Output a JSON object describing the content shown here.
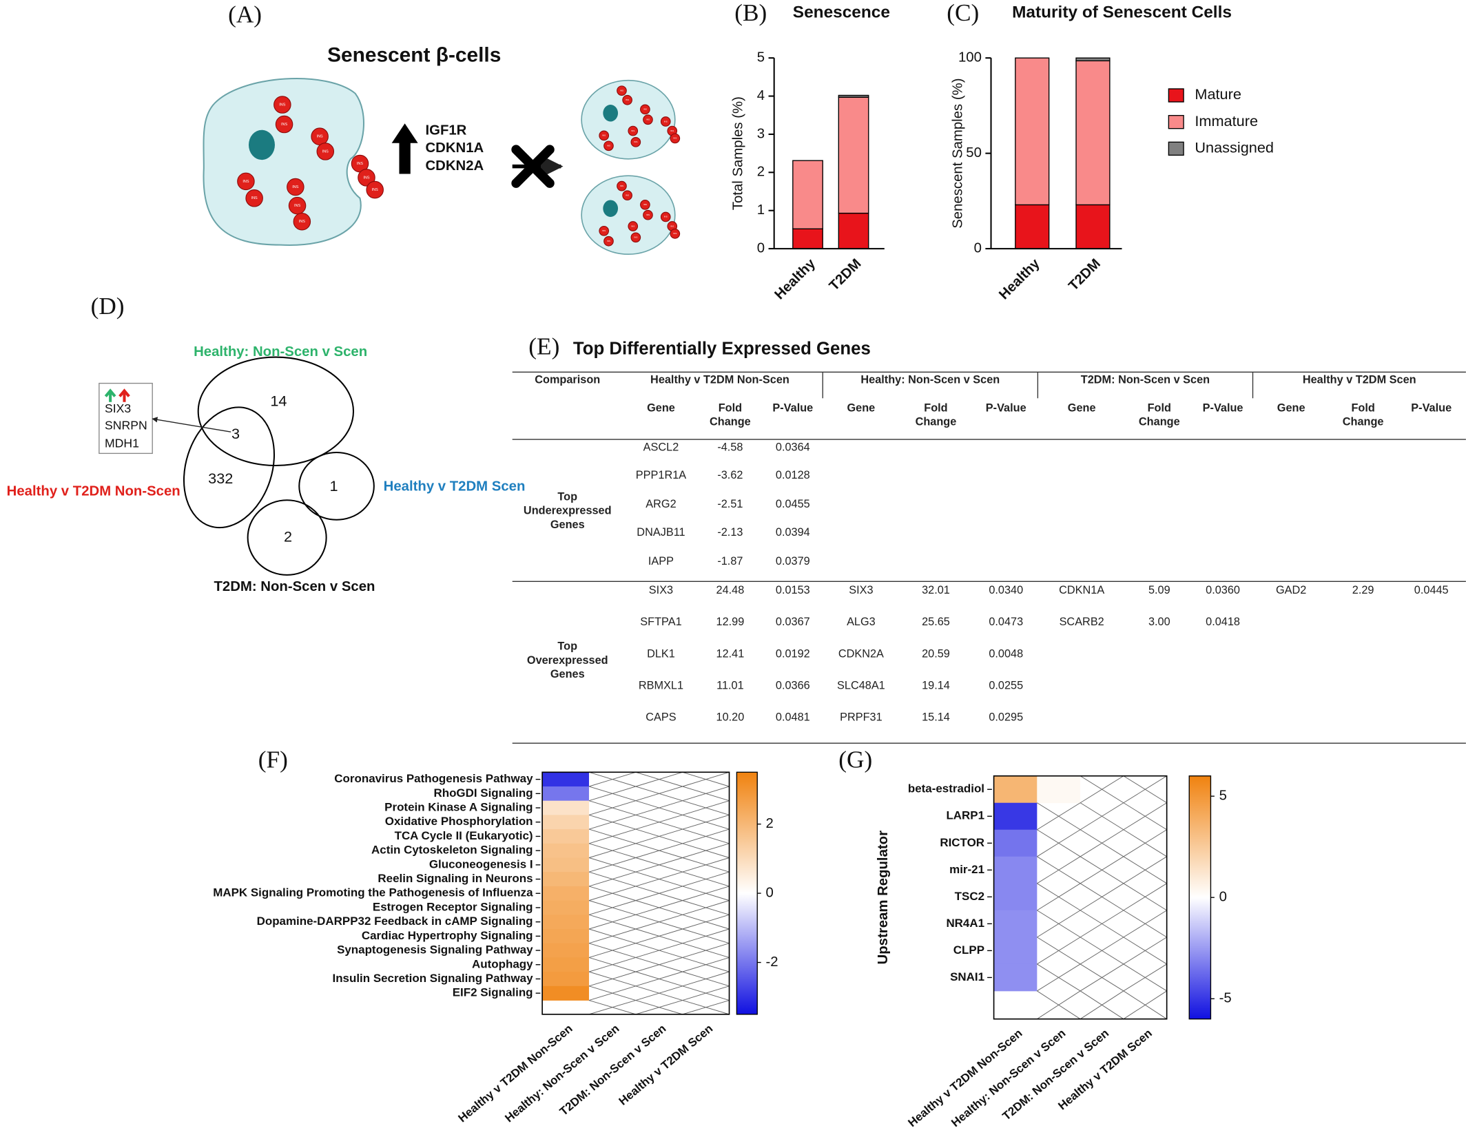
{
  "panel_labels": [
    "(A)",
    "(B)",
    "(C)",
    "(D)",
    "(E)",
    "(F)",
    "(G)"
  ],
  "diagram": {
    "title": "Senescent β-cells",
    "genes": [
      "IGF1R",
      "CDKN1A",
      "CDKN2A"
    ],
    "cell_label": "INS"
  },
  "venn": {
    "sets": [
      {
        "name": "Healthy: Non-Scen v Scen",
        "color": "#2db36b"
      },
      {
        "name": "Healthy v T2DM Non-Scen",
        "color": "#e0201b"
      },
      {
        "name": "Healthy v T2DM Scen",
        "color": "#1f7fbf"
      },
      {
        "name": "T2DM: Non-Scen v Scen",
        "color": "#111111"
      }
    ],
    "counts": [
      14,
      3,
      332,
      1,
      2
    ],
    "shared_genes": [
      "SIX3",
      "SNRPN",
      "MDH1"
    ]
  },
  "table": {
    "title": "Top Differentially Expressed Genes",
    "corner": "Comparison",
    "comparisons": [
      "Healthy v T2DM Non-Scen",
      "Healthy: Non-Scen v Scen",
      "T2DM: Non-Scen v Scen",
      "Healthy v T2DM Scen"
    ],
    "columns": [
      "Gene",
      "Fold Change",
      "P-Value"
    ],
    "sections": [
      {
        "label": "Top Underexpressed Genes",
        "comparisons": [
          [
            [
              "ASCL2",
              "-4.58",
              "0.0364"
            ],
            [
              "PPP1R1A",
              "-3.62",
              "0.0128"
            ],
            [
              "ARG2",
              "-2.51",
              "0.0455"
            ],
            [
              "DNAJB11",
              "-2.13",
              "0.0394"
            ],
            [
              "IAPP",
              "-1.87",
              "0.0379"
            ]
          ],
          [],
          [],
          []
        ]
      },
      {
        "label": "Top Overexpressed Genes",
        "comparisons": [
          [
            [
              "SIX3",
              "24.48",
              "0.0153"
            ],
            [
              "SFTPA1",
              "12.99",
              "0.0367"
            ],
            [
              "DLK1",
              "12.41",
              "0.0192"
            ],
            [
              "RBMXL1",
              "11.01",
              "0.0366"
            ],
            [
              "CAPS",
              "10.20",
              "0.0481"
            ]
          ],
          [
            [
              "SIX3",
              "32.01",
              "0.0340"
            ],
            [
              "ALG3",
              "25.65",
              "0.0473"
            ],
            [
              "CDKN2A",
              "20.59",
              "0.0048"
            ],
            [
              "SLC48A1",
              "19.14",
              "0.0255"
            ],
            [
              "PRPF31",
              "15.14",
              "0.0295"
            ]
          ],
          [
            [
              "CDKN1A",
              "5.09",
              "0.0360"
            ],
            [
              "SCARB2",
              "3.00",
              "0.0418"
            ]
          ],
          [
            [
              "GAD2",
              "2.29",
              "0.0445"
            ]
          ]
        ]
      }
    ]
  },
  "chart_data": [
    {
      "type": "stacked_bar",
      "title": "Senescence",
      "ylabel": "Total Samples (%)",
      "categories": [
        "Healthy",
        "T2DM"
      ],
      "series": [
        {
          "name": "Mature",
          "color": "#e8141b",
          "values": [
            0.52,
            0.93
          ]
        },
        {
          "name": "Immature",
          "color": "#f98a8a",
          "values": [
            1.79,
            3.04
          ]
        },
        {
          "name": "Unassigned",
          "color": "#808080",
          "values": [
            0,
            0.05
          ]
        }
      ],
      "ylim": [
        0,
        5
      ],
      "yticks": [
        0,
        1,
        2,
        3,
        4,
        5
      ]
    },
    {
      "type": "stacked_bar",
      "title": "Maturity of Senescent Cells",
      "ylabel": "Senescent Samples (%)",
      "categories": [
        "Healthy",
        "T2DM"
      ],
      "series": [
        {
          "name": "Mature",
          "color": "#e8141b",
          "values": [
            23,
            23
          ]
        },
        {
          "name": "Immature",
          "color": "#f98a8a",
          "values": [
            77,
            75.5
          ]
        },
        {
          "name": "Unassigned",
          "color": "#808080",
          "values": [
            0,
            1.5
          ]
        }
      ],
      "ylim": [
        0,
        100
      ],
      "yticks": [
        0,
        50,
        100
      ],
      "legend": "right"
    },
    {
      "type": "heatmap",
      "rows": [
        "Coronavirus Pathogenesis Pathway",
        "RhoGDI Signaling",
        "Protein Kinase A Signaling",
        "Oxidative Phosphorylation",
        "TCA Cycle II (Eukaryotic)",
        "Actin Cytoskeleton Signaling",
        "Gluconeogenesis I",
        "Reelin Signaling in Neurons",
        "MAPK Signaling Promoting the Pathogenesis of Influenza",
        "Estrogen Receptor Signaling",
        "Dopamine-DARPP32 Feedback in cAMP Signaling",
        "Cardiac Hypertrophy Signaling",
        "Synaptogenesis Signaling Pathway",
        "Autophagy",
        "Insulin Secretion Signaling Pathway",
        "EIF2 Signaling"
      ],
      "columns": [
        "Healthy v T2DM Non-Scen",
        "Healthy: Non-Scen v Scen",
        "T2DM: Non-Scen v Scen",
        "Healthy v T2DM Scen"
      ],
      "values": [
        [
          -3,
          null,
          null,
          null
        ],
        [
          -2,
          null,
          null,
          null
        ],
        [
          0.8,
          null,
          null,
          null
        ],
        [
          1.2,
          null,
          null,
          null
        ],
        [
          1.5,
          null,
          null,
          null
        ],
        [
          1.7,
          null,
          null,
          null
        ],
        [
          1.8,
          null,
          null,
          null
        ],
        [
          2,
          null,
          null,
          null
        ],
        [
          2.2,
          null,
          null,
          null
        ],
        [
          2.3,
          null,
          null,
          null
        ],
        [
          2.4,
          null,
          null,
          null
        ],
        [
          2.5,
          null,
          null,
          null
        ],
        [
          2.6,
          null,
          null,
          null
        ],
        [
          2.7,
          null,
          null,
          null
        ],
        [
          2.8,
          null,
          null,
          null
        ],
        [
          3.2,
          null,
          null,
          null
        ]
      ],
      "clim": [
        -3.5,
        3.5
      ],
      "cticks": [
        -2,
        0,
        2
      ],
      "colors": [
        "#1010e0",
        "#ffffff",
        "#f0820f"
      ]
    },
    {
      "type": "heatmap",
      "ylabel": "Upstream Regulator",
      "rows": [
        "beta-estradiol",
        "LARP1",
        "RICTOR",
        "mir-21",
        "TSC2",
        "NR4A1",
        "CLPP",
        "SNAI1"
      ],
      "columns": [
        "Healthy v T2DM Non-Scen",
        "Healthy: Non-Scen v Scen",
        "T2DM: Non-Scen v Scen",
        "Healthy v T2DM Scen"
      ],
      "values": [
        [
          3.5,
          0.3,
          null,
          null
        ],
        [
          -5,
          null,
          null,
          null
        ],
        [
          -3.5,
          null,
          null,
          null
        ],
        [
          -3,
          null,
          null,
          null
        ],
        [
          -3,
          null,
          null,
          null
        ],
        [
          -2.8,
          null,
          null,
          null
        ],
        [
          -2.8,
          null,
          null,
          null
        ],
        [
          -2.8,
          null,
          null,
          null
        ]
      ],
      "clim": [
        -6,
        6
      ],
      "cticks": [
        -5,
        0,
        5
      ],
      "colors": [
        "#1010e0",
        "#ffffff",
        "#f0820f"
      ]
    }
  ]
}
